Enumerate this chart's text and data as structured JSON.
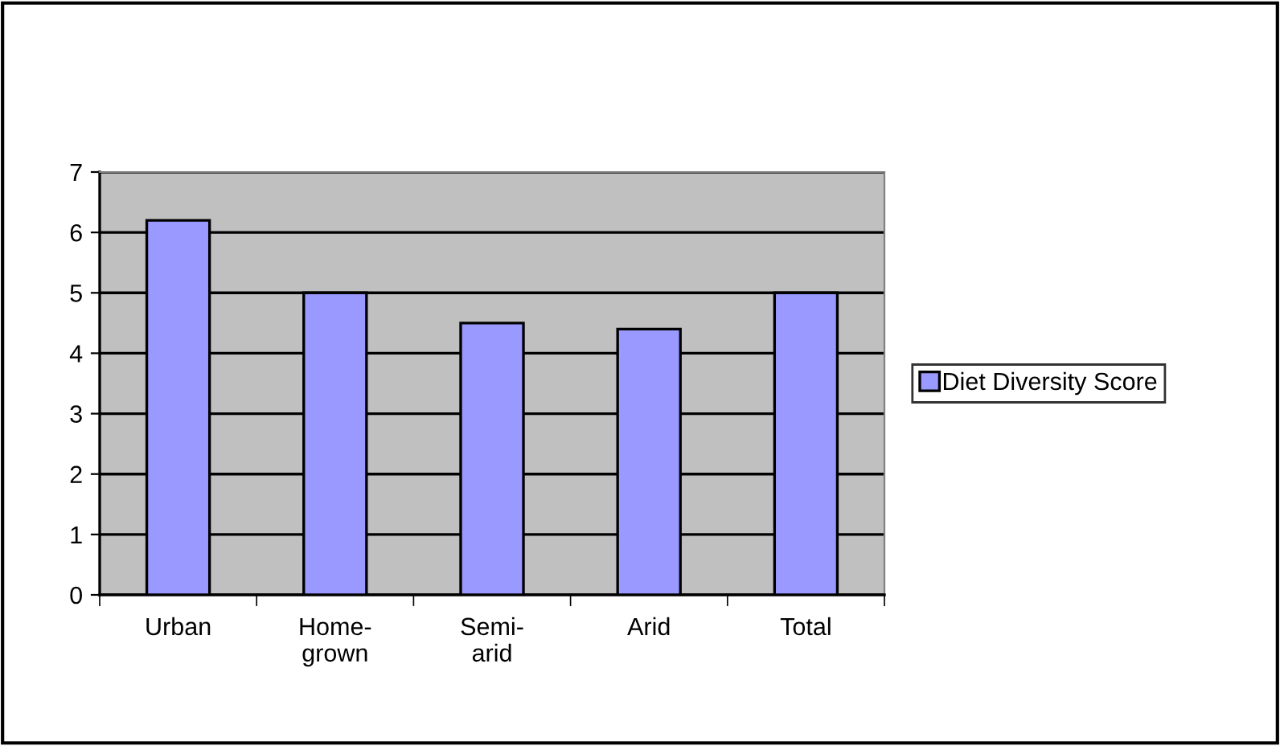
{
  "chart_data": {
    "type": "bar",
    "categories": [
      "Urban",
      "Home-\ngrown",
      "Semi-\narid",
      "Arid",
      "Total"
    ],
    "series": [
      {
        "name": "Diet Diversity Score",
        "color": "#9999ff",
        "values": [
          6.2,
          5.0,
          4.5,
          4.4,
          5.0
        ]
      }
    ],
    "ylim": [
      0,
      7
    ],
    "yticks": [
      0,
      1,
      2,
      3,
      4,
      5,
      6,
      7
    ],
    "grid": "y",
    "legend": "right"
  }
}
